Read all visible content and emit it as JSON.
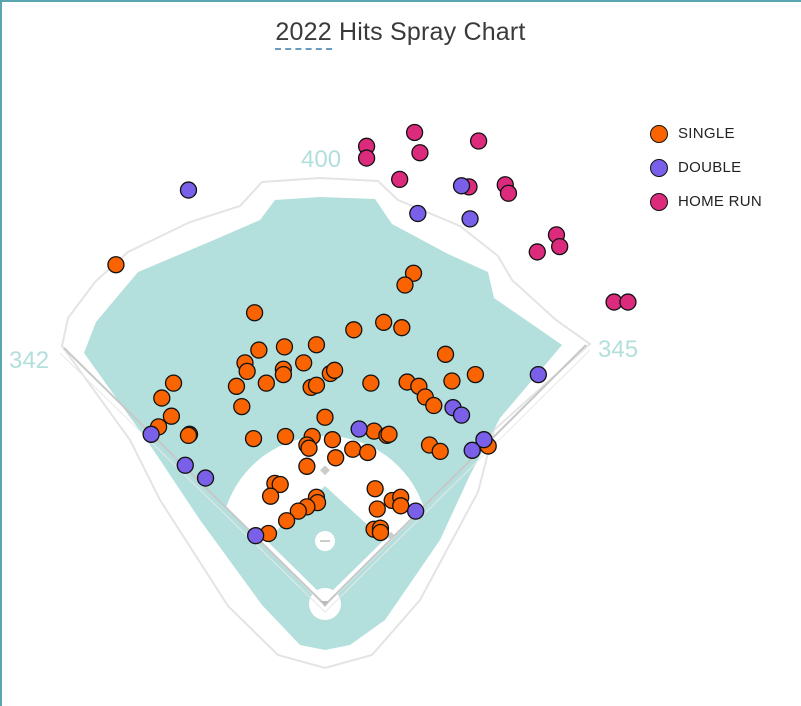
{
  "chart_data": {
    "type": "scatter",
    "title": "2022 Hits Spray Chart",
    "title_highlight": "2022",
    "title_rest": " Hits Spray Chart",
    "xlabel": "",
    "ylabel": "",
    "units": "feet from home plate (x: toward right field, y: toward center field)",
    "grid": false,
    "legend_position": "top-right",
    "field_distances": {
      "left_field": "342",
      "center_field": "400",
      "right_field": "345"
    },
    "colors": {
      "field_grass": "#b3dfdc",
      "wall": "#e4e4e4",
      "foul_line": "#c8c8c8",
      "distance_label": "#b2dfdb"
    },
    "series": [
      {
        "name": "HOME RUN",
        "color": "#dc2a7c",
        "points": [
          [
            39,
            430
          ],
          [
            39,
            419
          ],
          [
            84,
            443
          ],
          [
            89,
            424
          ],
          [
            144,
            435
          ],
          [
            70,
            399
          ],
          [
            135,
            392
          ],
          [
            169,
            394
          ],
          [
            172,
            386
          ],
          [
            217,
            347
          ],
          [
            220,
            336
          ],
          [
            199,
            331
          ],
          [
            271,
            284
          ],
          [
            284,
            284
          ]
        ]
      },
      {
        "name": "SINGLE",
        "color": "#fa6400",
        "points": [
          [
            -196,
            319
          ],
          [
            -66,
            274
          ],
          [
            -62,
            239
          ],
          [
            -38,
            242
          ],
          [
            -8,
            244
          ],
          [
            -75,
            227
          ],
          [
            -73,
            219
          ],
          [
            -39,
            221
          ],
          [
            -39,
            216
          ],
          [
            -20,
            227
          ],
          [
            -83,
            205
          ],
          [
            -55,
            208
          ],
          [
            -13,
            204
          ],
          [
            -8,
            206
          ],
          [
            5,
            217
          ],
          [
            9,
            220
          ],
          [
            -78,
            186
          ],
          [
            0,
            176
          ],
          [
            -142,
            208
          ],
          [
            -153,
            194
          ],
          [
            -144,
            177
          ],
          [
            -156,
            167
          ],
          [
            -127,
            160
          ],
          [
            -128,
            159
          ],
          [
            -67,
            156
          ],
          [
            -37,
            158
          ],
          [
            -12,
            158
          ],
          [
            -17,
            150
          ],
          [
            -15,
            147
          ],
          [
            7,
            155
          ],
          [
            83,
            311
          ],
          [
            75,
            300
          ],
          [
            55,
            265
          ],
          [
            72,
            260
          ],
          [
            27,
            258
          ],
          [
            43,
            208
          ],
          [
            77,
            209
          ],
          [
            88,
            205
          ],
          [
            94,
            195
          ],
          [
            102,
            187
          ],
          [
            113,
            235
          ],
          [
            119,
            210
          ],
          [
            141,
            216
          ],
          [
            46,
            163
          ],
          [
            58,
            159
          ],
          [
            60,
            160
          ],
          [
            26,
            146
          ],
          [
            40,
            143
          ],
          [
            98,
            150
          ],
          [
            108,
            144
          ],
          [
            153,
            149
          ],
          [
            10,
            138
          ],
          [
            -17,
            130
          ],
          [
            -47,
            114
          ],
          [
            -42,
            113
          ],
          [
            -51,
            102
          ],
          [
            -8,
            101
          ],
          [
            -7,
            96
          ],
          [
            -17,
            92
          ],
          [
            -25,
            88
          ],
          [
            -36,
            79
          ],
          [
            -53,
            67
          ],
          [
            47,
            109
          ],
          [
            63,
            98
          ],
          [
            71,
            101
          ],
          [
            71,
            93
          ],
          [
            49,
            90
          ],
          [
            46,
            71
          ],
          [
            52,
            72
          ],
          [
            52,
            68
          ]
        ]
      },
      {
        "name": "DOUBLE",
        "color": "#7a5fe8",
        "points": [
          [
            -128,
            389
          ],
          [
            -163,
            160
          ],
          [
            -131,
            131
          ],
          [
            -112,
            119
          ],
          [
            -65,
            65
          ],
          [
            32,
            165
          ],
          [
            85,
            88
          ],
          [
            120,
            185
          ],
          [
            128,
            178
          ],
          [
            138,
            145
          ],
          [
            149,
            155
          ],
          [
            200,
            216
          ],
          [
            128,
            393
          ],
          [
            87,
            367
          ],
          [
            136,
            362
          ]
        ]
      }
    ]
  },
  "legend": [
    {
      "label": "SINGLE",
      "color": "#fa6400"
    },
    {
      "label": "DOUBLE",
      "color": "#7a5fe8"
    },
    {
      "label": "HOME RUN",
      "color": "#dc2a7c"
    }
  ]
}
